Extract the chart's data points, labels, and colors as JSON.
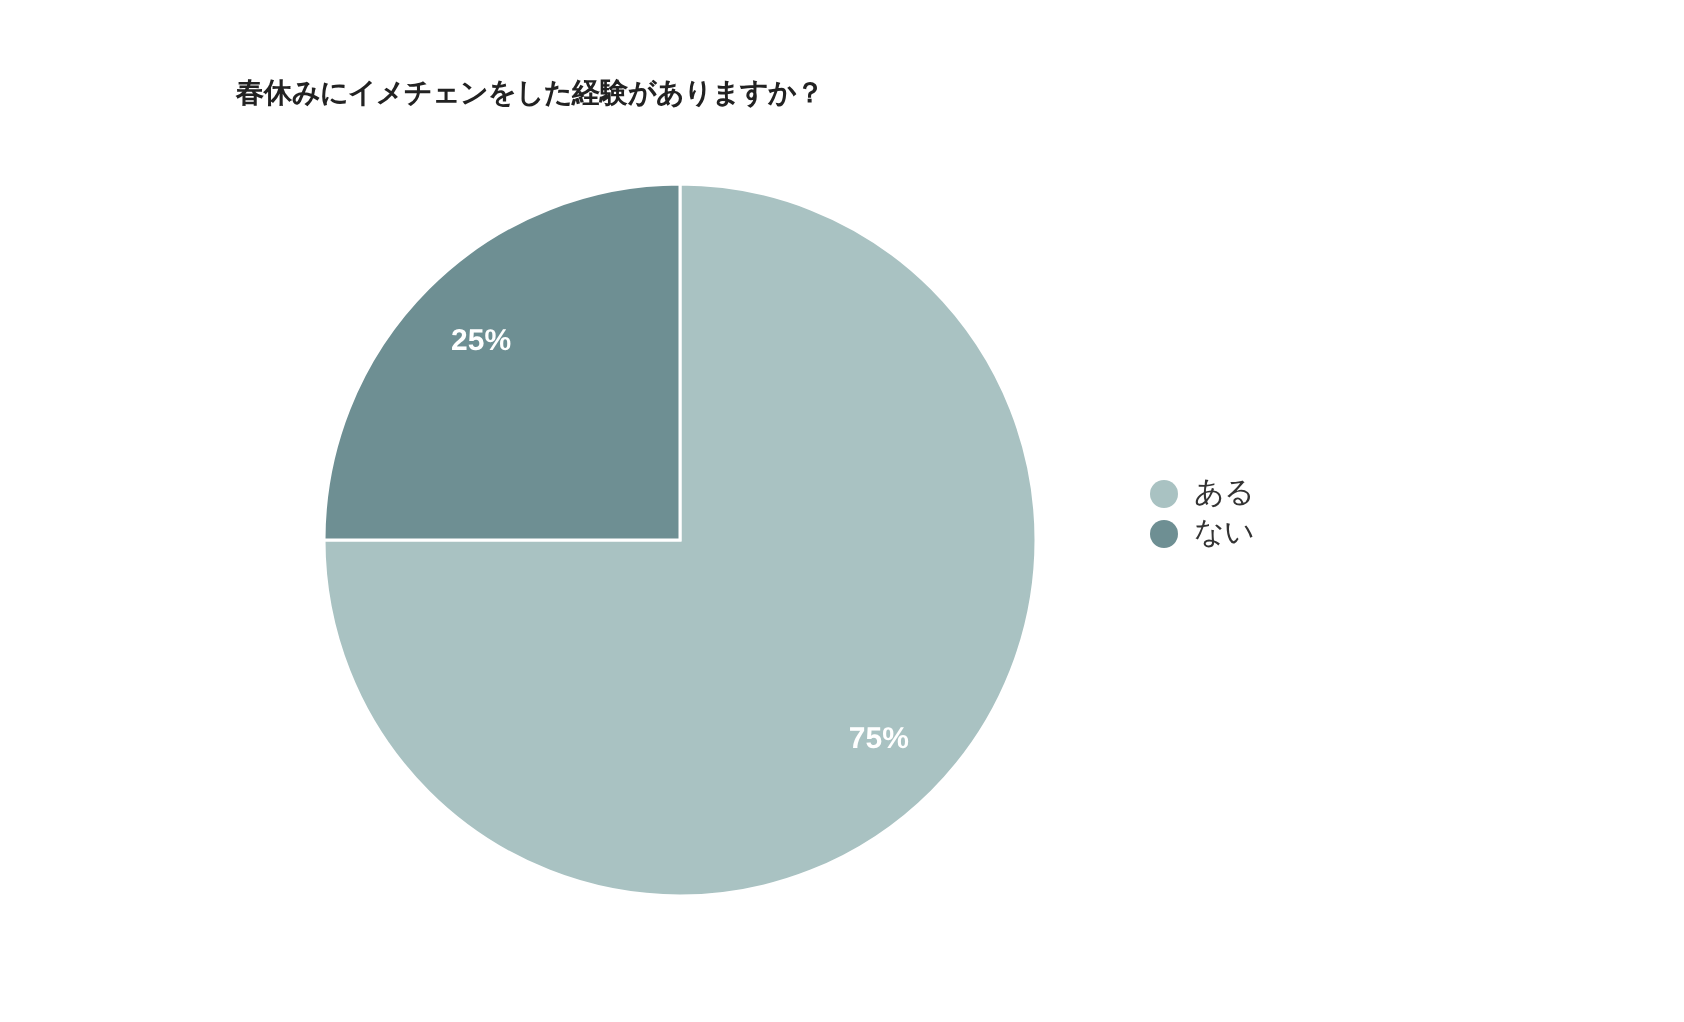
{
  "chart_data": {
    "type": "pie",
    "title": "春休みにイメチェンをした経験がありますか？",
    "categories": [
      "ある",
      "ない"
    ],
    "values": [
      75,
      25
    ],
    "colors": [
      "#a9c2c2",
      "#6e8f93"
    ],
    "value_labels": [
      "75%",
      "25%"
    ],
    "legend": "right"
  }
}
